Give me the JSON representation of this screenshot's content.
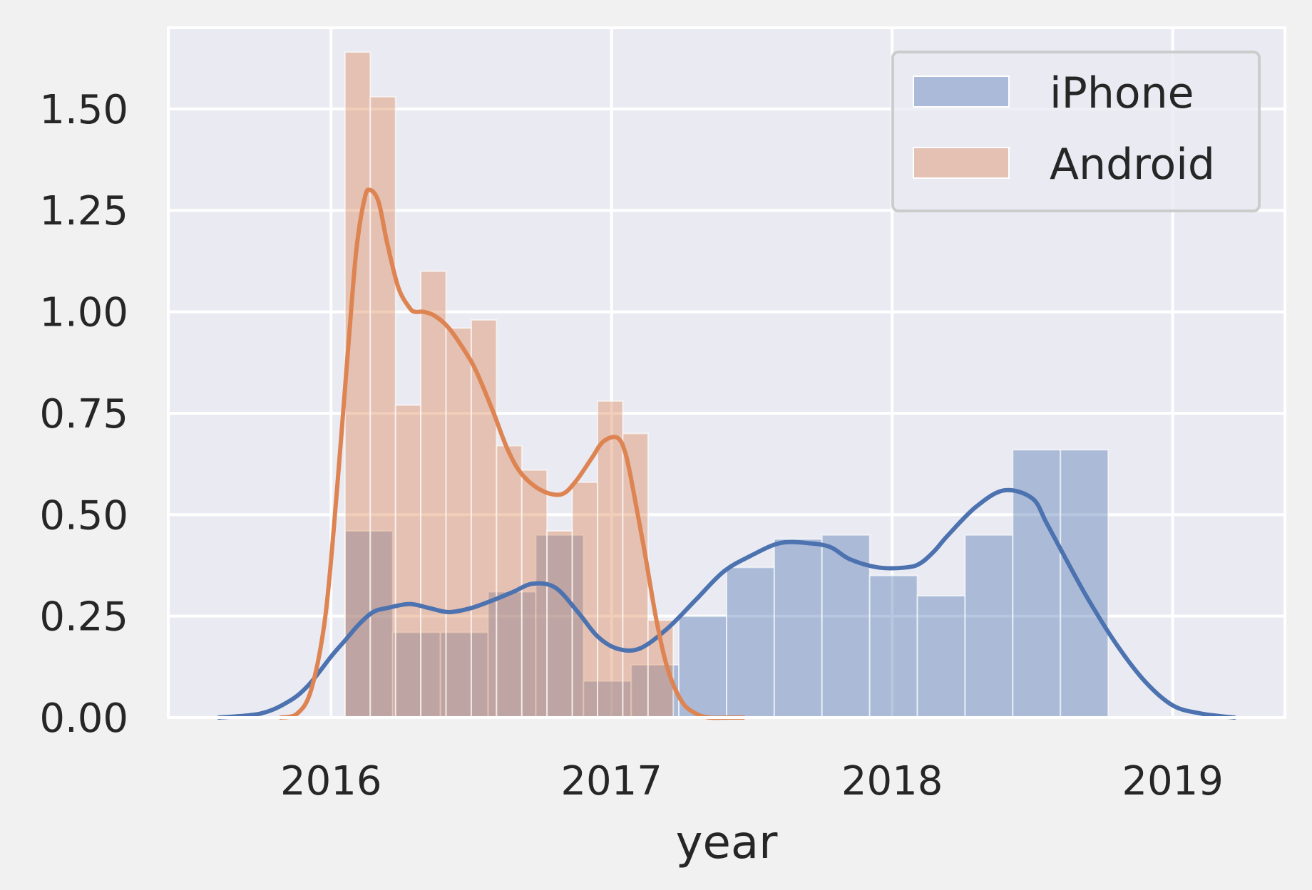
{
  "chart_data": {
    "type": "histogram+kde",
    "xlabel": "year",
    "ylabel": "",
    "xlim": [
      2015.42,
      2019.4
    ],
    "ylim": [
      0,
      1.7
    ],
    "xticks": [
      2016,
      2017,
      2018,
      2019
    ],
    "xtick_labels": [
      "2016",
      "2017",
      "2018",
      "2019"
    ],
    "yticks": [
      0,
      0.25,
      0.5,
      0.75,
      1.0,
      1.25,
      1.5
    ],
    "ytick_labels": [
      "0.00",
      "0.25",
      "0.50",
      "0.75",
      "1.00",
      "1.25",
      "1.50"
    ],
    "grid": true,
    "legend": {
      "position": "top-right",
      "entries": [
        "iPhone",
        "Android"
      ]
    },
    "series": [
      {
        "name": "iPhone",
        "color": "#4c72b0",
        "bins": [
          {
            "x0": 2016.05,
            "x1": 2016.22,
            "value": 0.46
          },
          {
            "x0": 2016.22,
            "x1": 2016.39,
            "value": 0.21
          },
          {
            "x0": 2016.39,
            "x1": 2016.56,
            "value": 0.21
          },
          {
            "x0": 2016.56,
            "x1": 2016.73,
            "value": 0.31
          },
          {
            "x0": 2016.73,
            "x1": 2016.9,
            "value": 0.45
          },
          {
            "x0": 2016.9,
            "x1": 2017.07,
            "value": 0.09
          },
          {
            "x0": 2017.07,
            "x1": 2017.24,
            "value": 0.13
          },
          {
            "x0": 2017.24,
            "x1": 2017.41,
            "value": 0.25
          },
          {
            "x0": 2017.41,
            "x1": 2017.58,
            "value": 0.37
          },
          {
            "x0": 2017.58,
            "x1": 2017.75,
            "value": 0.44
          },
          {
            "x0": 2017.75,
            "x1": 2017.92,
            "value": 0.45
          },
          {
            "x0": 2017.92,
            "x1": 2018.09,
            "value": 0.35
          },
          {
            "x0": 2018.09,
            "x1": 2018.26,
            "value": 0.3
          },
          {
            "x0": 2018.26,
            "x1": 2018.43,
            "value": 0.45
          },
          {
            "x0": 2018.43,
            "x1": 2018.6,
            "value": 0.66
          },
          {
            "x0": 2018.6,
            "x1": 2018.77,
            "value": 0.66
          }
        ],
        "kde": {
          "x": [
            2015.6,
            2015.75,
            2015.85,
            2015.92,
            2016.0,
            2016.05,
            2016.1,
            2016.15,
            2016.2,
            2016.28,
            2016.35,
            2016.42,
            2016.5,
            2016.58,
            2016.65,
            2016.72,
            2016.8,
            2016.88,
            2016.95,
            2017.02,
            2017.1,
            2017.2,
            2017.3,
            2017.4,
            2017.5,
            2017.6,
            2017.7,
            2017.78,
            2017.85,
            2017.95,
            2018.05,
            2018.1,
            2018.15,
            2018.2,
            2018.3,
            2018.4,
            2018.5,
            2018.55,
            2018.62,
            2018.7,
            2018.8,
            2018.9,
            2019.0,
            2019.1,
            2019.22
          ],
          "y": [
            0.0,
            0.01,
            0.04,
            0.08,
            0.15,
            0.19,
            0.23,
            0.26,
            0.27,
            0.28,
            0.27,
            0.26,
            0.27,
            0.29,
            0.31,
            0.33,
            0.32,
            0.26,
            0.2,
            0.17,
            0.17,
            0.22,
            0.29,
            0.36,
            0.4,
            0.43,
            0.43,
            0.42,
            0.39,
            0.37,
            0.37,
            0.38,
            0.41,
            0.45,
            0.52,
            0.56,
            0.54,
            0.48,
            0.39,
            0.29,
            0.18,
            0.09,
            0.03,
            0.01,
            0.0
          ]
        }
      },
      {
        "name": "Android",
        "color": "#dd8452",
        "bins": [
          {
            "x0": 2016.05,
            "x1": 2016.14,
            "value": 1.64
          },
          {
            "x0": 2016.14,
            "x1": 2016.23,
            "value": 1.53
          },
          {
            "x0": 2016.23,
            "x1": 2016.32,
            "value": 0.77
          },
          {
            "x0": 2016.32,
            "x1": 2016.41,
            "value": 1.1
          },
          {
            "x0": 2016.41,
            "x1": 2016.5,
            "value": 0.96
          },
          {
            "x0": 2016.5,
            "x1": 2016.59,
            "value": 0.98
          },
          {
            "x0": 2016.59,
            "x1": 2016.68,
            "value": 0.67
          },
          {
            "x0": 2016.68,
            "x1": 2016.77,
            "value": 0.61
          },
          {
            "x0": 2016.77,
            "x1": 2016.86,
            "value": 0.46
          },
          {
            "x0": 2016.86,
            "x1": 2016.95,
            "value": 0.58
          },
          {
            "x0": 2016.95,
            "x1": 2017.04,
            "value": 0.78
          },
          {
            "x0": 2017.04,
            "x1": 2017.13,
            "value": 0.7
          },
          {
            "x0": 2017.13,
            "x1": 2017.22,
            "value": 0.24
          }
        ],
        "kde": {
          "x": [
            2015.82,
            2015.88,
            2015.93,
            2015.98,
            2016.02,
            2016.06,
            2016.09,
            2016.12,
            2016.14,
            2016.17,
            2016.2,
            2016.24,
            2016.28,
            2016.3,
            2016.33,
            2016.37,
            2016.42,
            2016.48,
            2016.52,
            2016.58,
            2016.63,
            2016.68,
            2016.75,
            2016.82,
            2016.87,
            2016.93,
            2016.97,
            2017.02,
            2017.05,
            2017.08,
            2017.12,
            2017.16,
            2017.2,
            2017.25,
            2017.3,
            2017.35,
            2017.42,
            2017.47
          ],
          "y": [
            0.0,
            0.01,
            0.07,
            0.25,
            0.55,
            0.9,
            1.15,
            1.28,
            1.3,
            1.27,
            1.17,
            1.06,
            1.01,
            1.0,
            1.0,
            0.99,
            0.96,
            0.9,
            0.85,
            0.75,
            0.66,
            0.6,
            0.56,
            0.55,
            0.58,
            0.64,
            0.68,
            0.69,
            0.65,
            0.55,
            0.4,
            0.24,
            0.12,
            0.04,
            0.01,
            0.0,
            0.0,
            0.0
          ]
        }
      }
    ]
  }
}
